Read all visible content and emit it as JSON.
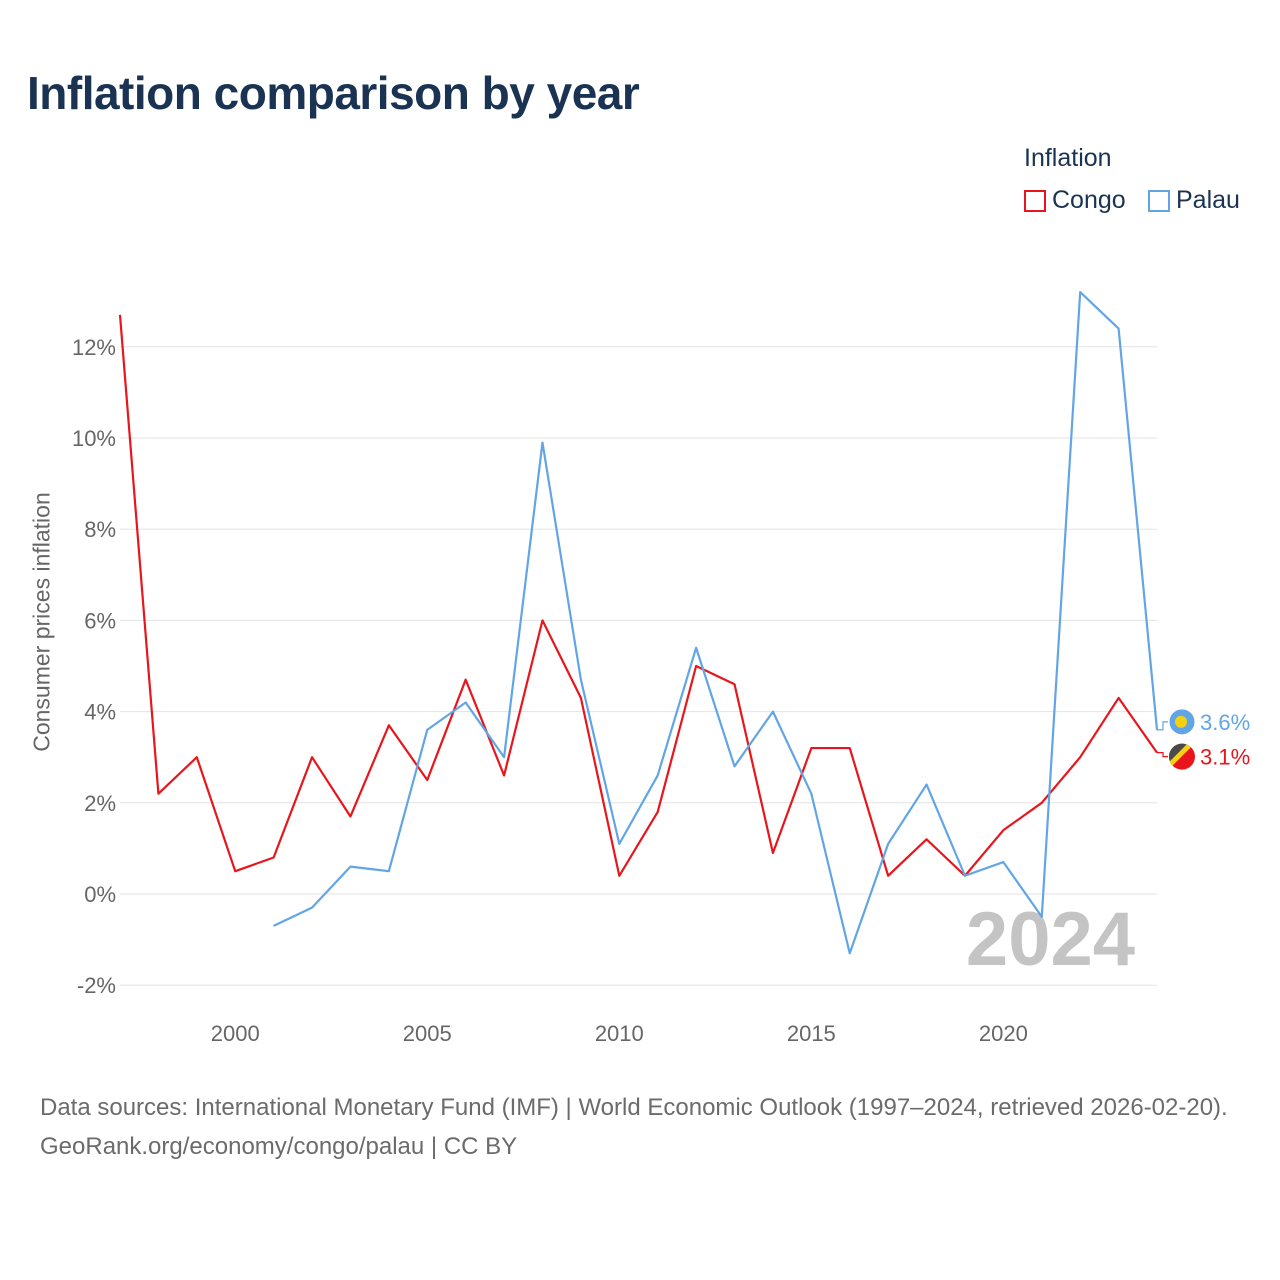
{
  "title": "Inflation comparison by year",
  "legend": {
    "title": "Inflation",
    "items": [
      {
        "label": "Congo",
        "color": "#e8161c"
      },
      {
        "label": "Palau",
        "color": "#62a5e6"
      }
    ]
  },
  "chart_data": {
    "type": "line",
    "title": "Inflation comparison by year",
    "xlabel": "",
    "ylabel": "Consumer prices inflation",
    "xlim": [
      1997,
      2024
    ],
    "ylim": [
      -2.2,
      13.4
    ],
    "x_ticks": [
      2000,
      2005,
      2010,
      2015,
      2020
    ],
    "y_ticks": [
      -2,
      0,
      2,
      4,
      6,
      8,
      10,
      12
    ],
    "y_tick_suffix": "%",
    "grid": true,
    "year_label": "2024",
    "series": [
      {
        "name": "Congo",
        "color": "#e8161c",
        "x": [
          1997,
          1998,
          1999,
          2000,
          2001,
          2002,
          2003,
          2004,
          2005,
          2006,
          2007,
          2008,
          2009,
          2010,
          2011,
          2012,
          2013,
          2014,
          2015,
          2016,
          2017,
          2018,
          2019,
          2020,
          2021,
          2022,
          2023,
          2024
        ],
        "values": [
          12.7,
          2.2,
          3.0,
          0.5,
          0.8,
          3.0,
          1.7,
          3.7,
          2.5,
          4.7,
          2.6,
          6.0,
          4.3,
          0.4,
          1.8,
          5.0,
          4.6,
          0.9,
          3.2,
          3.2,
          0.4,
          1.2,
          0.4,
          1.4,
          2.0,
          3.0,
          4.3,
          3.1
        ],
        "end_label": "3.1%"
      },
      {
        "name": "Palau",
        "color": "#62a5e6",
        "x": [
          2001,
          2002,
          2003,
          2004,
          2005,
          2006,
          2007,
          2008,
          2009,
          2010,
          2011,
          2012,
          2013,
          2014,
          2015,
          2016,
          2017,
          2018,
          2019,
          2020,
          2021,
          2022,
          2023,
          2024
        ],
        "values": [
          -0.7,
          -0.3,
          0.6,
          0.5,
          3.6,
          4.2,
          3.0,
          9.9,
          4.7,
          1.1,
          2.6,
          5.4,
          2.8,
          4.0,
          2.2,
          -1.3,
          1.1,
          2.4,
          0.4,
          0.7,
          -0.5,
          13.2,
          12.4,
          3.6
        ],
        "end_label": "3.6%"
      }
    ]
  },
  "footer": {
    "source_line": "Data sources: International Monetary Fund (IMF) | World Economic Outlook (1997–2024, retrieved 2026-02-20).",
    "attribution": "GeoRank.org/economy/congo/palau | CC BY"
  }
}
